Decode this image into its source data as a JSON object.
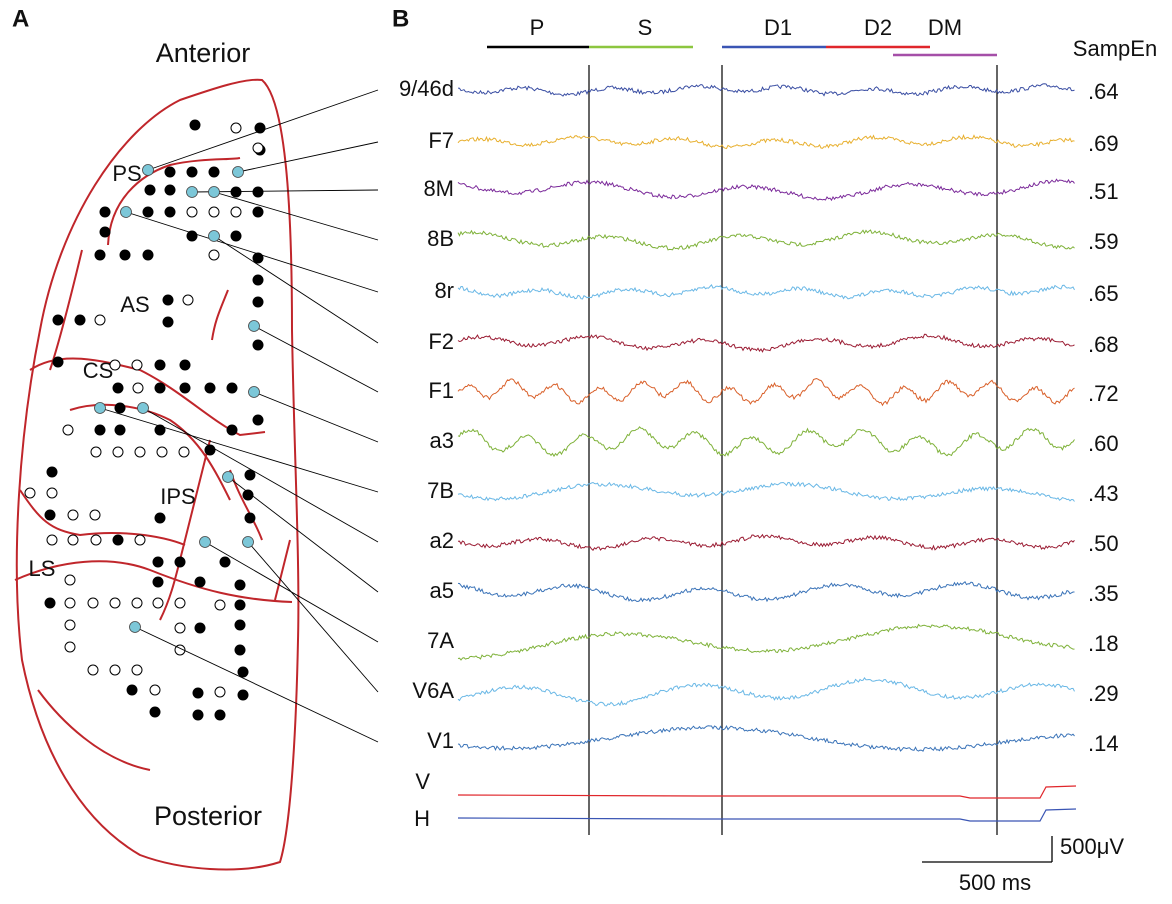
{
  "panel_a": {
    "label": "A",
    "anterior": "Anterior",
    "posterior": "Posterior",
    "sulci": [
      "PS",
      "AS",
      "CS",
      "IPS",
      "LS"
    ]
  },
  "panel_b": {
    "label": "B",
    "sampen_header": "SampEn",
    "epochs": [
      {
        "name": "P",
        "color": "#000000"
      },
      {
        "name": "S",
        "color": "#8cc63f"
      },
      {
        "name": "D1",
        "color": "#3a55b4"
      },
      {
        "name": "D2",
        "color": "#e0262b"
      },
      {
        "name": "DM",
        "color": "#a54fa8"
      }
    ],
    "channels": [
      {
        "name": "9/46d",
        "sampen": ".64",
        "color": "#3a4ea3"
      },
      {
        "name": "F7",
        "sampen": ".69",
        "color": "#e8b030"
      },
      {
        "name": "8M",
        "sampen": ".51",
        "color": "#7b2a9a"
      },
      {
        "name": "8B",
        "sampen": ".59",
        "color": "#7fb23a"
      },
      {
        "name": "8r",
        "sampen": ".65",
        "color": "#6ab8e6"
      },
      {
        "name": "F2",
        "sampen": ".68",
        "color": "#9b1d34"
      },
      {
        "name": "F1",
        "sampen": ".72",
        "color": "#d9602a"
      },
      {
        "name": "a3",
        "sampen": ".60",
        "color": "#7fb23a"
      },
      {
        "name": "7B",
        "sampen": ".43",
        "color": "#6ab8e6"
      },
      {
        "name": "a2",
        "sampen": ".50",
        "color": "#9b1d34"
      },
      {
        "name": "a5",
        "sampen": ".35",
        "color": "#3a73b8"
      },
      {
        "name": "7A",
        "sampen": ".18",
        "color": "#7fb23a"
      },
      {
        "name": "V6A",
        "sampen": ".29",
        "color": "#6ab8e6"
      },
      {
        "name": "V1",
        "sampen": ".14",
        "color": "#3a73b8"
      }
    ],
    "eye": [
      {
        "name": "V",
        "color": "#e0262b"
      },
      {
        "name": "H",
        "color": "#3a55b4"
      }
    ],
    "scale_voltage": "500μV",
    "scale_time": "500 ms"
  }
}
